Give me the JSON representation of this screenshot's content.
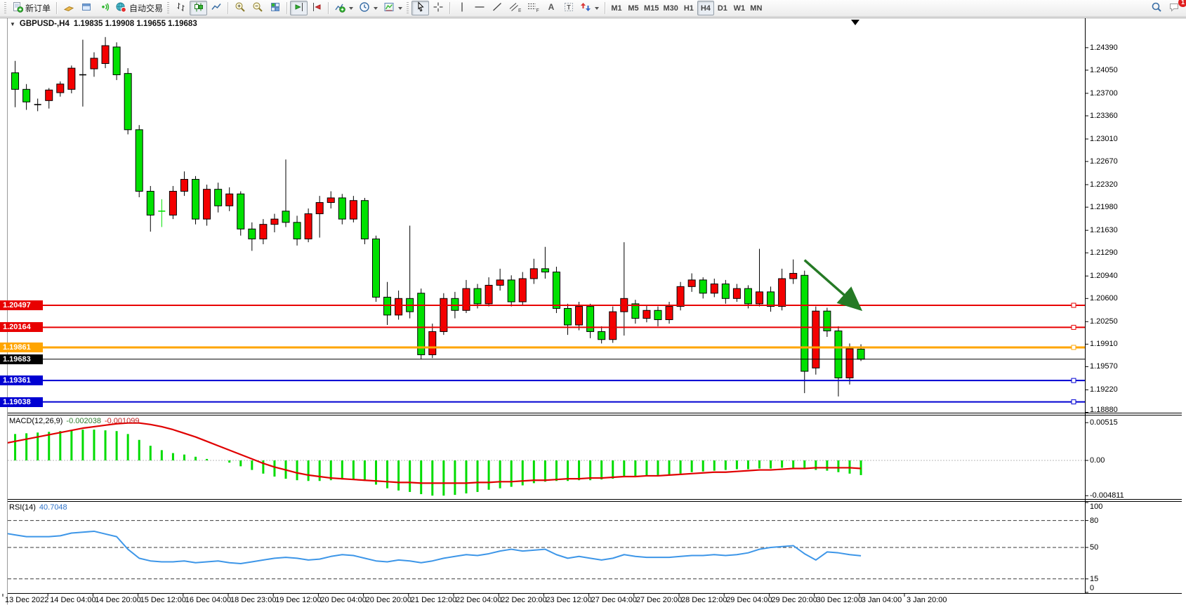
{
  "toolbar": {
    "new_order_label": "新订单",
    "autotrade_label": "自动交易",
    "timeframes": [
      "M1",
      "M5",
      "M15",
      "M30",
      "H1",
      "H4",
      "D1",
      "W1",
      "MN"
    ],
    "active_timeframe": "H4",
    "chat_badge_count": "1",
    "channel_subscript": "E",
    "fibo_subscript": "F",
    "text_tool_label": "A",
    "label_tool_label": "T"
  },
  "window": {
    "symbol_period": "GBPUSD-,H4",
    "ohlc_text": "1.19835 1.19908 1.19655 1.19683"
  },
  "indicators": {
    "macd_name": "MACD(12,26,9)",
    "macd_value_main": "-0.002038",
    "macd_value_signal": "-0.001099",
    "rsi_name": "RSI(14)",
    "rsi_value": "40.7048"
  },
  "chart_data": {
    "type": "candlestick",
    "symbol": "GBPUSD-",
    "timeframe": "H4",
    "current_bar": {
      "open": 1.19835,
      "high": 1.19908,
      "low": 1.19655,
      "close": 1.19683
    },
    "up_color": "#f40000",
    "down_color": "#00e100",
    "price_axis_ticks": [
      1.2439,
      1.2405,
      1.237,
      1.2336,
      1.2301,
      1.2267,
      1.2232,
      1.2198,
      1.2163,
      1.2129,
      1.2094,
      1.206,
      1.2025,
      1.1991,
      1.1957,
      1.1922,
      1.1888
    ],
    "time_labels": [
      "13 Dec 2022",
      "14 Dec 04:00",
      "14 Dec 20:00",
      "15 Dec 12:00",
      "16 Dec 04:00",
      "18 Dec 23:00",
      "19 Dec 12:00",
      "20 Dec 04:00",
      "20 Dec 20:00",
      "21 Dec 12:00",
      "22 Dec 04:00",
      "22 Dec 20:00",
      "23 Dec 12:00",
      "27 Dec 04:00",
      "27 Dec 20:00",
      "28 Dec 12:00",
      "29 Dec 04:00",
      "29 Dec 20:00",
      "30 Dec 12:00",
      "3 Jan 04:00",
      "3 Jan 20:00"
    ],
    "candles": [
      [
        1.2294,
        1.2406,
        1.2265,
        1.24
      ],
      [
        1.2401,
        1.2419,
        1.2349,
        1.2376
      ],
      [
        1.2376,
        1.2384,
        1.2345,
        1.2357
      ],
      [
        1.2355,
        1.2362,
        1.2343,
        1.2353,
        "k"
      ],
      [
        1.2359,
        1.2378,
        1.2347,
        1.2375
      ],
      [
        1.2371,
        1.2388,
        1.2365,
        1.2384
      ],
      [
        1.2376,
        1.2412,
        1.237,
        1.2408
      ],
      [
        1.2402,
        1.2451,
        1.235,
        1.2398,
        "k"
      ],
      [
        1.2407,
        1.2432,
        1.2395,
        1.2423
      ],
      [
        1.2415,
        1.2455,
        1.2408,
        1.2442
      ],
      [
        1.244,
        1.2447,
        1.239,
        1.2398
      ],
      [
        1.24,
        1.2408,
        1.2308,
        1.2315
      ],
      [
        1.2315,
        1.2322,
        1.2213,
        1.2222
      ],
      [
        1.2222,
        1.223,
        1.2161,
        1.2186
      ],
      [
        1.219,
        1.221,
        1.2168,
        1.2192,
        "g"
      ],
      [
        1.2186,
        1.223,
        1.218,
        1.2222
      ],
      [
        1.2222,
        1.2252,
        1.2215,
        1.224
      ],
      [
        1.224,
        1.2245,
        1.2172,
        1.218
      ],
      [
        1.218,
        1.2232,
        1.217,
        1.2225
      ],
      [
        1.2225,
        1.2235,
        1.219,
        1.22
      ],
      [
        1.22,
        1.2228,
        1.2192,
        1.2218
      ],
      [
        1.2218,
        1.2222,
        1.2155,
        1.2165
      ],
      [
        1.2165,
        1.2175,
        1.2132,
        1.215
      ],
      [
        1.215,
        1.218,
        1.2142,
        1.2172
      ],
      [
        1.2172,
        1.2188,
        1.216,
        1.218
      ],
      [
        1.2192,
        1.227,
        1.2168,
        1.2175
      ],
      [
        1.2175,
        1.2185,
        1.214,
        1.215
      ],
      [
        1.215,
        1.2196,
        1.2145,
        1.2188
      ],
      [
        1.2188,
        1.2215,
        1.2152,
        1.2205
      ],
      [
        1.2205,
        1.2222,
        1.2196,
        1.2212
      ],
      [
        1.2212,
        1.2218,
        1.2172,
        1.218
      ],
      [
        1.218,
        1.2215,
        1.2175,
        1.2208
      ],
      [
        1.2208,
        1.2212,
        1.2142,
        1.215
      ],
      [
        1.215,
        1.2155,
        1.2055,
        1.2062
      ],
      [
        1.2062,
        1.2085,
        1.202,
        1.2035
      ],
      [
        1.2035,
        1.2072,
        1.2028,
        1.206
      ],
      [
        1.206,
        1.217,
        1.203,
        1.204
      ],
      [
        1.2068,
        1.2075,
        1.1968,
        1.1975
      ],
      [
        1.1975,
        1.2022,
        1.197,
        1.201
      ],
      [
        1.201,
        1.2068,
        1.2005,
        1.206
      ],
      [
        1.206,
        1.207,
        1.203,
        1.2042
      ],
      [
        1.2042,
        1.2088,
        1.2038,
        1.2075
      ],
      [
        1.2075,
        1.2082,
        1.2045,
        1.2052
      ],
      [
        1.2052,
        1.2092,
        1.2048,
        1.208
      ],
      [
        1.208,
        1.2105,
        1.2072,
        1.2088
      ],
      [
        1.2088,
        1.2095,
        1.2048,
        1.2055
      ],
      [
        1.2055,
        1.21,
        1.205,
        1.209
      ],
      [
        1.209,
        1.212,
        1.2082,
        1.2105
      ],
      [
        1.2105,
        1.2138,
        1.209,
        1.21
      ],
      [
        1.21,
        1.2108,
        1.2038,
        1.2045
      ],
      [
        1.2045,
        1.2052,
        1.2005,
        1.202
      ],
      [
        1.202,
        1.2055,
        1.2012,
        1.2048
      ],
      [
        1.2048,
        1.2052,
        1.2,
        1.201
      ],
      [
        1.201,
        1.2018,
        1.1992,
        1.1998
      ],
      [
        1.1998,
        1.2048,
        1.1993,
        1.204
      ],
      [
        1.204,
        1.2145,
        1.2004,
        1.206
      ],
      [
        1.2052,
        1.2058,
        1.2022,
        1.203
      ],
      [
        1.203,
        1.205,
        1.2024,
        1.2042
      ],
      [
        1.2042,
        1.2048,
        1.2018,
        1.2028
      ],
      [
        1.2028,
        1.2055,
        1.2022,
        1.2048
      ],
      [
        1.2048,
        1.2085,
        1.2042,
        1.2078
      ],
      [
        1.2078,
        1.2098,
        1.207,
        1.2088
      ],
      [
        1.2088,
        1.2092,
        1.206,
        1.2068
      ],
      [
        1.2068,
        1.209,
        1.2062,
        1.2082
      ],
      [
        1.2082,
        1.2088,
        1.2052,
        1.206
      ],
      [
        1.206,
        1.2082,
        1.2055,
        1.2075
      ],
      [
        1.2075,
        1.208,
        1.2045,
        1.2052
      ],
      [
        1.2052,
        1.2135,
        1.2048,
        1.207
      ],
      [
        1.207,
        1.2078,
        1.204,
        1.2048
      ],
      [
        1.2048,
        1.2105,
        1.2042,
        1.209
      ],
      [
        1.209,
        1.2119,
        1.2082,
        1.2098
      ],
      [
        1.2095,
        1.2102,
        1.1917,
        1.195
      ],
      [
        1.1955,
        1.2048,
        1.1945,
        1.2041
      ],
      [
        1.2041,
        1.2046,
        1.2002,
        1.2011
      ],
      [
        1.2011,
        1.2018,
        1.1912,
        1.194
      ],
      [
        1.194,
        1.1992,
        1.193,
        1.1984
      ],
      [
        1.19835,
        1.19908,
        1.19655,
        1.19683
      ]
    ],
    "horizontal_lines": [
      {
        "price": 1.20497,
        "color": "#e80000",
        "width": 2,
        "handles": true
      },
      {
        "price": 1.20164,
        "color": "#e80000",
        "width": 2,
        "handles": true
      },
      {
        "price": 1.19861,
        "color": "#ffa500",
        "width": 3,
        "handles": true
      },
      {
        "price": 1.19683,
        "color": "#000000",
        "width": 1,
        "handles": false,
        "is_bid": true
      },
      {
        "price": 1.19361,
        "color": "#0000d2",
        "width": 2,
        "handles": true
      },
      {
        "price": 1.19038,
        "color": "#0000d2",
        "width": 2,
        "handles": true
      }
    ],
    "arrow_annotation": {
      "bar_from": 71,
      "price_from": 1.2118,
      "bar_to": 75.8,
      "price_to": 1.2046,
      "color": "#257a25"
    },
    "macd": {
      "histogram_color": "#00dc00",
      "signal_color": "#e00000",
      "axis_ticks": [
        {
          "value": 0.00515,
          "label": "0.00515"
        },
        {
          "value": 0,
          "label": "0.00"
        },
        {
          "value": -0.004811,
          "label": "-0.004811"
        }
      ],
      "histogram": [
        0.0035,
        0.0036,
        0.0037,
        0.0038,
        0.0039,
        0.004,
        0.0041,
        0.0042,
        0.0042,
        0.0041,
        0.004,
        0.0036,
        0.0028,
        0.002,
        0.0014,
        0.001,
        0.0008,
        0.0005,
        0.0002,
        0.0,
        -0.0003,
        -0.0008,
        -0.0013,
        -0.0018,
        -0.0022,
        -0.0025,
        -0.0027,
        -0.0028,
        -0.0028,
        -0.0027,
        -0.0026,
        -0.0026,
        -0.0028,
        -0.0033,
        -0.0038,
        -0.0041,
        -0.0043,
        -0.0046,
        -0.0048,
        -0.0048,
        -0.0047,
        -0.0045,
        -0.0043,
        -0.004,
        -0.0038,
        -0.0036,
        -0.0034,
        -0.0031,
        -0.0029,
        -0.0028,
        -0.0028,
        -0.0027,
        -0.0027,
        -0.0026,
        -0.0025,
        -0.0023,
        -0.0022,
        -0.0021,
        -0.002,
        -0.0019,
        -0.0018,
        -0.0016,
        -0.0015,
        -0.0014,
        -0.0013,
        -0.0012,
        -0.0012,
        -0.0011,
        -0.0011,
        -0.001,
        -0.001,
        -0.0012,
        -0.0013,
        -0.0014,
        -0.0016,
        -0.0018,
        -0.002
      ],
      "signal": [
        0.0023,
        0.0026,
        0.0029,
        0.0032,
        0.0035,
        0.0038,
        0.0041,
        0.0044,
        0.0046,
        0.0048,
        0.005,
        0.0051,
        0.0051,
        0.0049,
        0.0046,
        0.0042,
        0.0037,
        0.0032,
        0.0026,
        0.002,
        0.0014,
        0.0008,
        0.0002,
        -0.0004,
        -0.0009,
        -0.0013,
        -0.0017,
        -0.002,
        -0.0022,
        -0.0024,
        -0.0025,
        -0.0026,
        -0.0027,
        -0.0028,
        -0.0029,
        -0.003,
        -0.003,
        -0.0031,
        -0.0031,
        -0.0031,
        -0.0031,
        -0.0031,
        -0.003,
        -0.003,
        -0.0029,
        -0.0029,
        -0.0028,
        -0.0027,
        -0.0027,
        -0.0026,
        -0.0025,
        -0.0025,
        -0.0024,
        -0.0024,
        -0.0023,
        -0.0022,
        -0.0022,
        -0.0021,
        -0.0021,
        -0.002,
        -0.0019,
        -0.0018,
        -0.0017,
        -0.0016,
        -0.0016,
        -0.0015,
        -0.0014,
        -0.0013,
        -0.0013,
        -0.0012,
        -0.0011,
        -0.0011,
        -0.001,
        -0.001,
        -0.001,
        -0.001,
        -0.0011
      ]
    },
    "rsi": {
      "line_color": "#3d96e8",
      "levels": [
        80,
        50,
        15
      ],
      "axis_ticks": [
        100,
        80,
        50,
        15,
        0
      ],
      "values": [
        66,
        64,
        62,
        62,
        62,
        63,
        66,
        67,
        68,
        65,
        62,
        48,
        38,
        35,
        34,
        34,
        35,
        33,
        34,
        35,
        33,
        32,
        34,
        36,
        38,
        39,
        38,
        36,
        37,
        40,
        42,
        41,
        38,
        35,
        34,
        36,
        35,
        33,
        35,
        38,
        40,
        42,
        41,
        43,
        46,
        48,
        46,
        47,
        48,
        42,
        38,
        40,
        38,
        36,
        38,
        42,
        40,
        39,
        39,
        39,
        40,
        41,
        41,
        42,
        41,
        42,
        44,
        48,
        50,
        51,
        52,
        43,
        36,
        45,
        44,
        42,
        40.7
      ]
    }
  }
}
